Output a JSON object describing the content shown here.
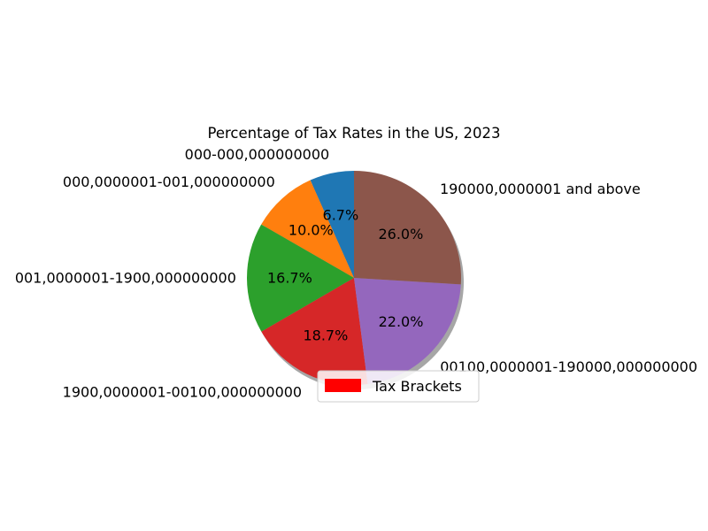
{
  "chart_data": {
    "type": "pie",
    "title": "Percentage of Tax Rates in the US, 2023",
    "labels": [
      "000-000,000000000",
      "000,0000001-001,000000000",
      "001,0000001-1900,000000000",
      "1900,0000001-00100,000000000",
      "00100,0000001-190000,000000000",
      "190000,0000001 and above"
    ],
    "values": [
      6.7,
      10.0,
      16.7,
      18.7,
      22.0,
      26.0
    ],
    "percent_labels": [
      "6.7%",
      "10.0%",
      "16.7%",
      "18.7%",
      "22.0%",
      "26.0%"
    ],
    "colors": [
      "#1f77b4",
      "#ff7f0e",
      "#2ca02c",
      "#d62728",
      "#9467bd",
      "#8c564b"
    ],
    "start_angle_deg": 90,
    "direction": "counterclockwise",
    "shadow": true,
    "legend": {
      "entries": [
        {
          "label": "Tax Brackets",
          "color": "#ff0000"
        }
      ],
      "placement": "lower-center"
    }
  }
}
